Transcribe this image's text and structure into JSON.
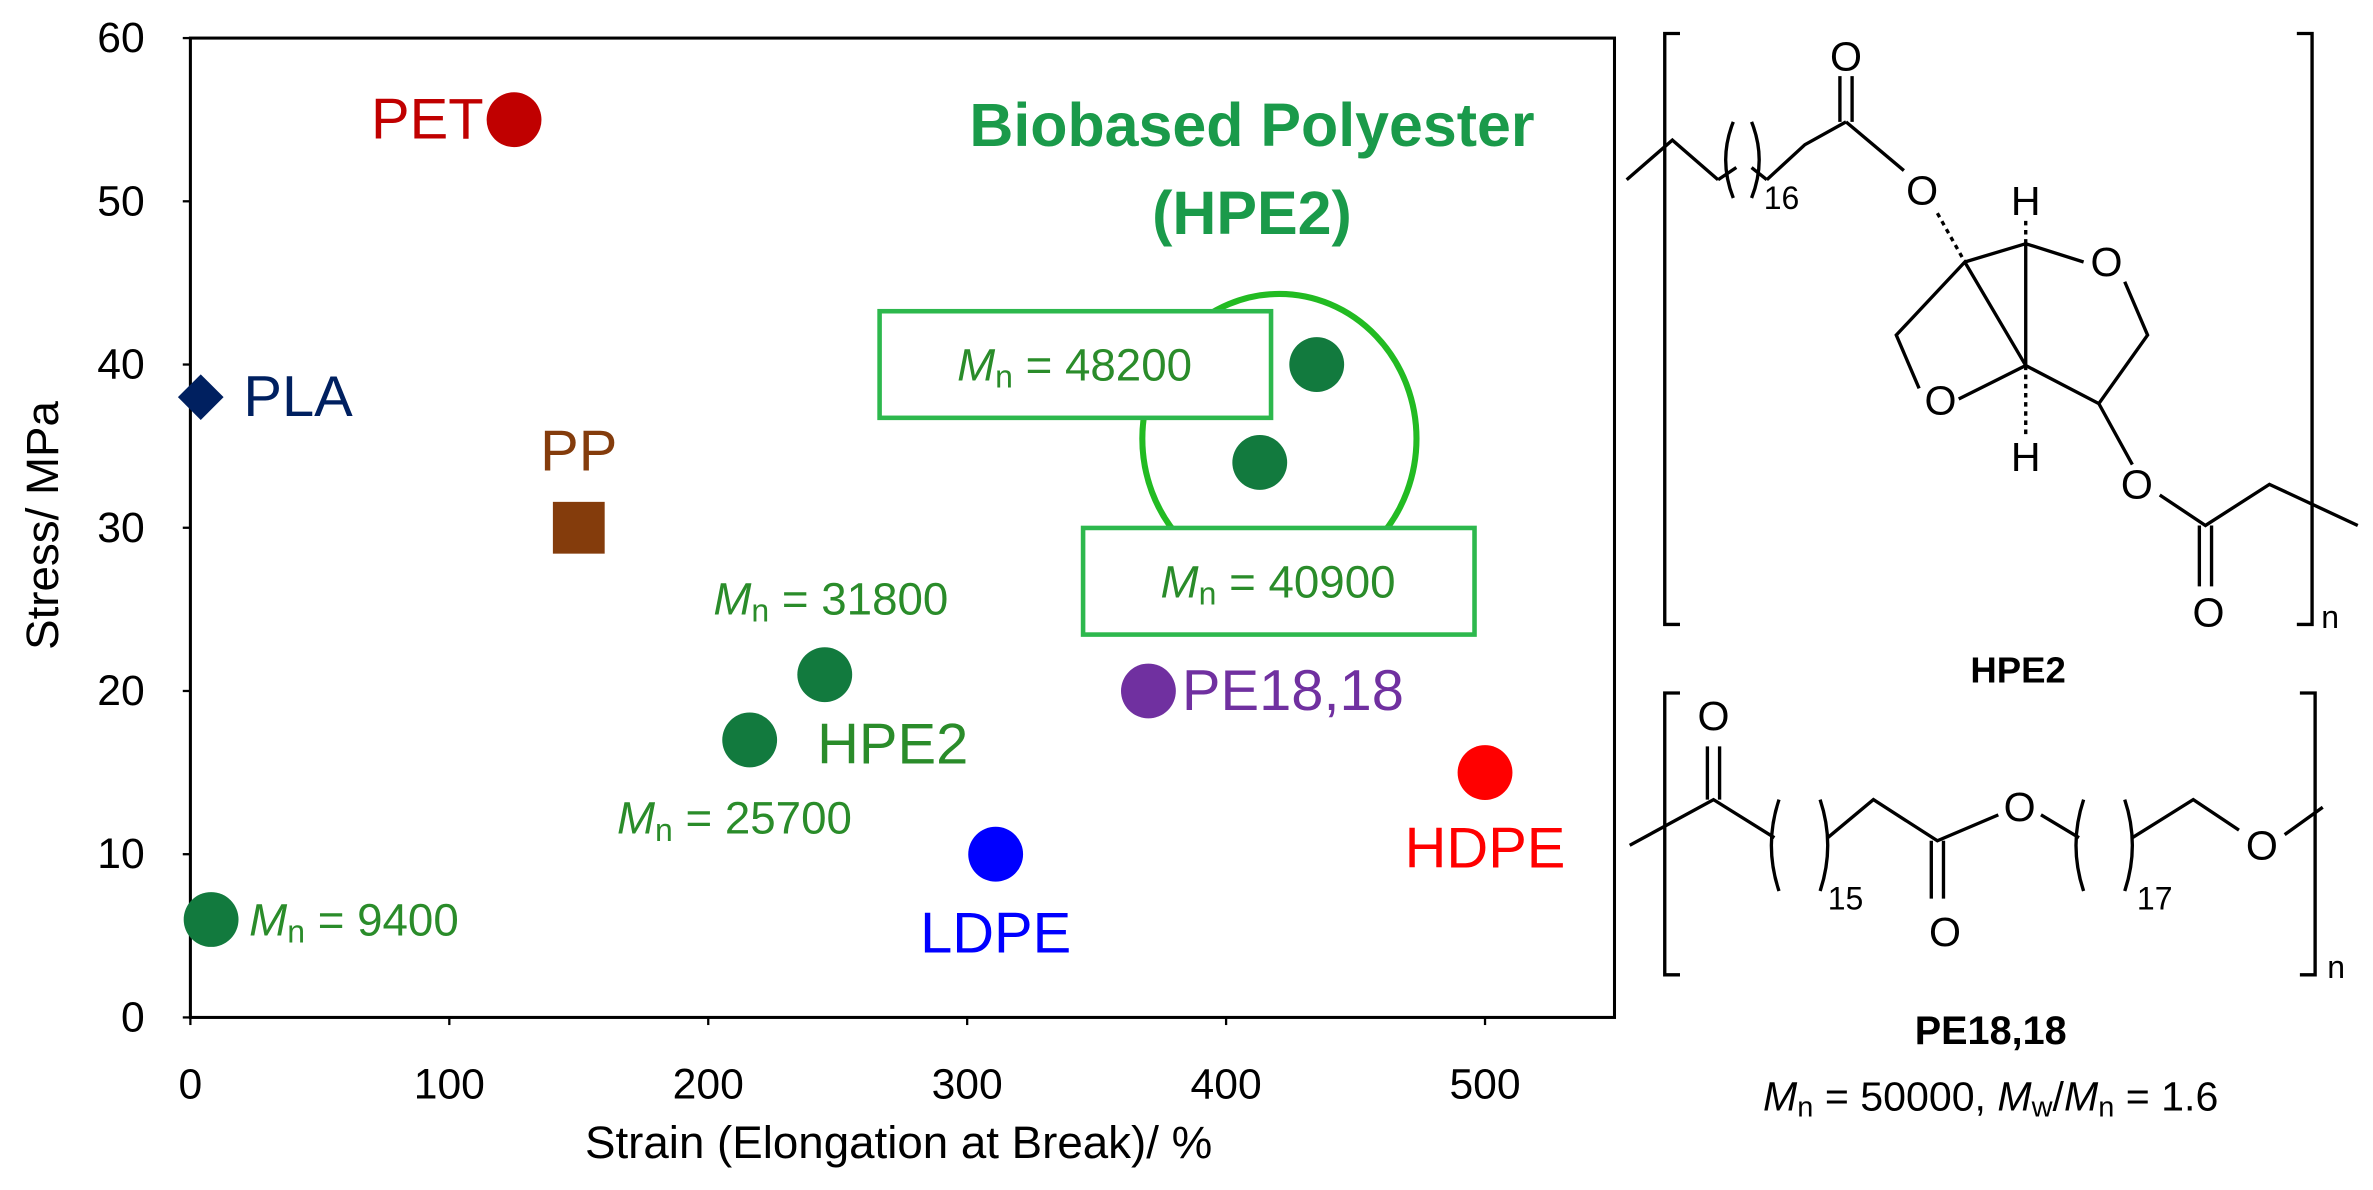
{
  "chart_data": {
    "type": "scatter",
    "title": "Biobased Polyester",
    "subtitle": "(HPE2)",
    "x_label": "Strain (Elongation at Break)/ %",
    "y_label": "Stress/ MPa",
    "xlim": [
      0,
      550
    ],
    "ylim": [
      0,
      60
    ],
    "xticks": [
      0,
      100,
      200,
      300,
      400,
      500
    ],
    "yticks": [
      0,
      10,
      20,
      30,
      40,
      50,
      60
    ],
    "grid": false,
    "annotation_color": "#2a8c2a",
    "mn_symbol": "M",
    "mn_subscript": "n",
    "mn_labels": [
      " = 9400",
      " = 25700",
      " = 31800",
      " = 40900",
      " = 48200"
    ],
    "series": [
      {
        "name": "PET",
        "color": "#c00000",
        "marker": "circle",
        "x": [
          125
        ],
        "values": [
          55
        ]
      },
      {
        "name": "PLA",
        "color": "#002060",
        "marker": "diamond",
        "x": [
          4
        ],
        "values": [
          38
        ]
      },
      {
        "name": "PP",
        "color": "#843c0c",
        "marker": "square",
        "x": [
          150
        ],
        "values": [
          30
        ]
      },
      {
        "name": "HPE2",
        "color": "#127a3e",
        "marker": "circle",
        "x": [
          8,
          216,
          245,
          413,
          435
        ],
        "values": [
          6,
          17,
          21,
          34,
          40
        ]
      },
      {
        "name": "LDPE",
        "color": "#0000ff",
        "marker": "circle",
        "x": [
          311
        ],
        "values": [
          10
        ]
      },
      {
        "name": "PE18,18",
        "color": "#7030a0",
        "marker": "circle",
        "x": [
          370
        ],
        "values": [
          20
        ]
      },
      {
        "name": "HDPE",
        "color": "#ff0000",
        "marker": "circle",
        "x": [
          500
        ],
        "values": [
          15
        ]
      }
    ]
  },
  "structures": {
    "hpe2": {
      "atoms": [
        "O",
        "O",
        "H",
        "O",
        "O",
        "H",
        "O",
        "O"
      ],
      "subscript": "16",
      "repeat": "n",
      "name": "HPE2"
    },
    "pe1818": {
      "atoms": [
        "O",
        "O",
        "O",
        "O"
      ],
      "subscripts": [
        "15",
        "17"
      ],
      "repeat": "n",
      "name": "PE18,18",
      "caption": [
        "M",
        "n",
        " = 50000, ",
        "M",
        "w",
        "/",
        "M",
        "n",
        " = 1.6"
      ]
    }
  }
}
